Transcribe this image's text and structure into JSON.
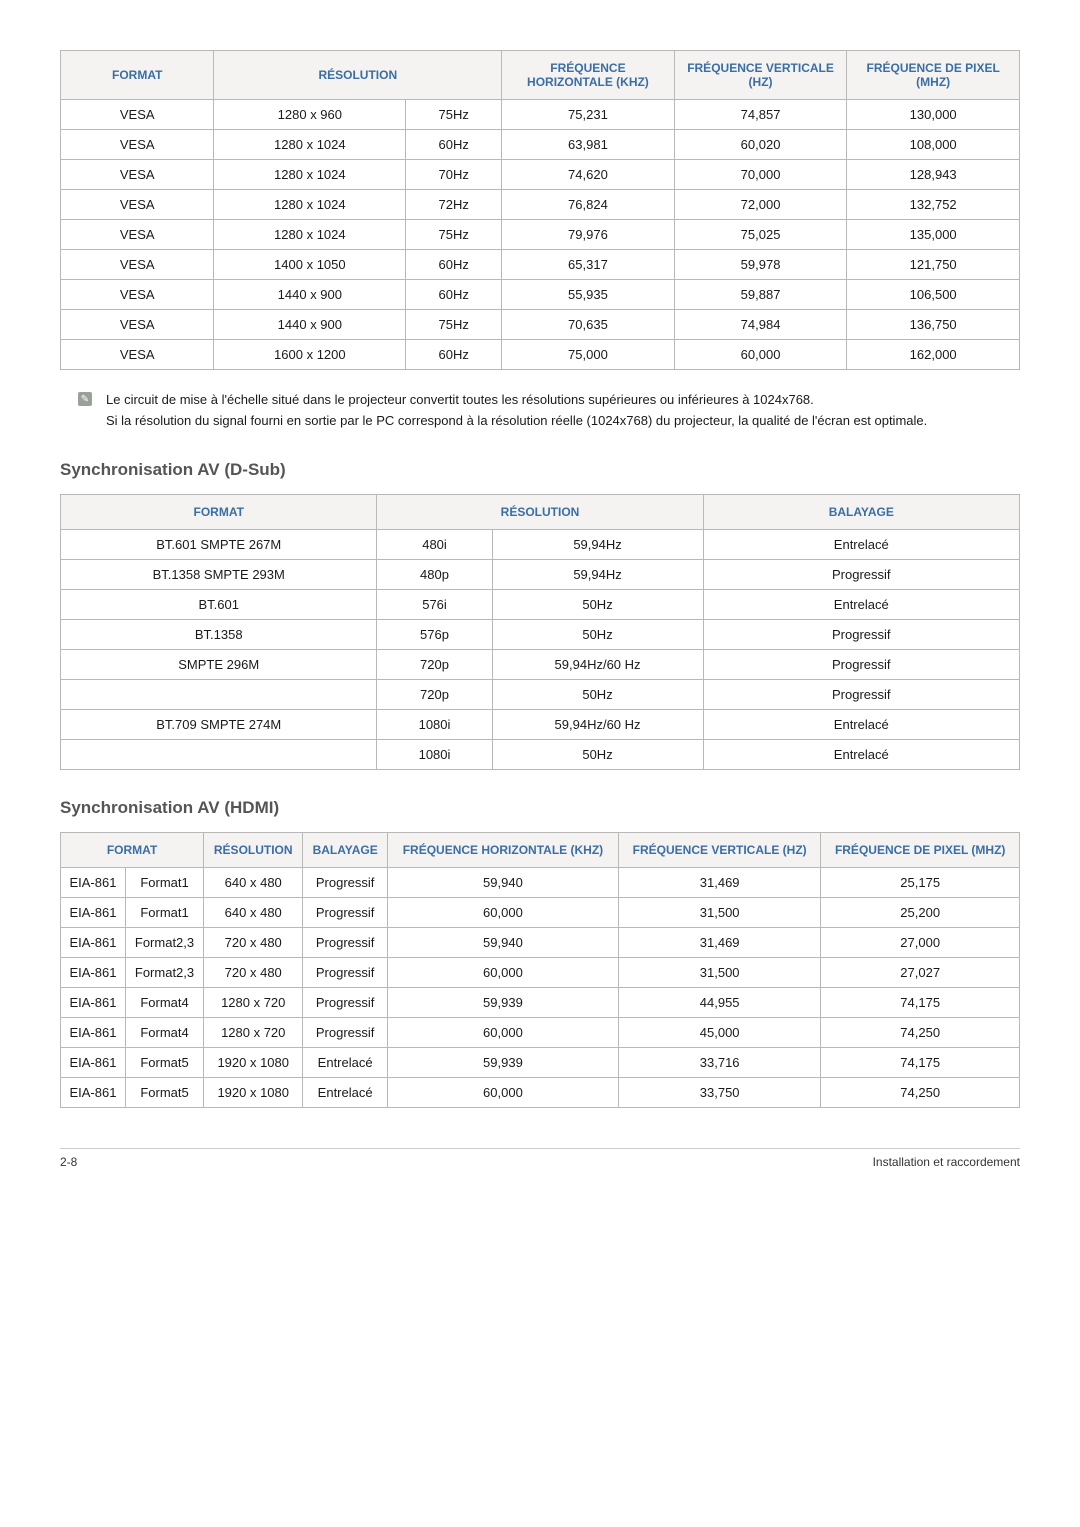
{
  "colors": {
    "header_bg": "#f4f3f2",
    "header_text": "#3a6ea5",
    "border": "#b8b8b8",
    "body_text": "#1a1a1a",
    "heading": "#555555"
  },
  "table1": {
    "headers": [
      "FORMAT",
      "RÉSOLUTION",
      "FRÉQUENCE HORIZONTALE (KHZ)",
      "FRÉQUENCE VERTICALE (HZ)",
      "FRÉQUENCE DE PIXEL (MHZ)"
    ],
    "rows": [
      [
        "VESA",
        "1280 x 960",
        "75Hz",
        "75,231",
        "74,857",
        "130,000"
      ],
      [
        "VESA",
        "1280 x 1024",
        "60Hz",
        "63,981",
        "60,020",
        "108,000"
      ],
      [
        "VESA",
        "1280 x 1024",
        "70Hz",
        "74,620",
        "70,000",
        "128,943"
      ],
      [
        "VESA",
        "1280 x 1024",
        "72Hz",
        "76,824",
        "72,000",
        "132,752"
      ],
      [
        "VESA",
        "1280 x 1024",
        "75Hz",
        "79,976",
        "75,025",
        "135,000"
      ],
      [
        "VESA",
        "1400 x 1050",
        "60Hz",
        "65,317",
        "59,978",
        "121,750"
      ],
      [
        "VESA",
        "1440 x 900",
        "60Hz",
        "55,935",
        "59,887",
        "106,500"
      ],
      [
        "VESA",
        "1440 x 900",
        "75Hz",
        "70,635",
        "74,984",
        "136,750"
      ],
      [
        "VESA",
        "1600 x 1200",
        "60Hz",
        "75,000",
        "60,000",
        "162,000"
      ]
    ]
  },
  "note": {
    "line1": "Le circuit de mise à l'échelle situé dans le projecteur convertit toutes les résolutions supérieures ou inférieures à 1024x768.",
    "line2": "Si la résolution du signal fourni en sortie par le PC correspond à la résolution réelle (1024x768) du projecteur, la qualité de l'écran est optimale."
  },
  "section2": {
    "heading": "Synchronisation AV (D-Sub)",
    "headers": [
      "FORMAT",
      "RÉSOLUTION",
      "BALAYAGE"
    ],
    "rows": [
      [
        "BT.601 SMPTE 267M",
        "480i",
        "59,94Hz",
        "Entrelacé"
      ],
      [
        "BT.1358 SMPTE 293M",
        "480p",
        "59,94Hz",
        "Progressif"
      ],
      [
        "BT.601",
        "576i",
        "50Hz",
        "Entrelacé"
      ],
      [
        "BT.1358",
        "576p",
        "50Hz",
        "Progressif"
      ],
      [
        "SMPTE 296M",
        "720p",
        "59,94Hz/60 Hz",
        "Progressif"
      ],
      [
        "",
        "720p",
        "50Hz",
        "Progressif"
      ],
      [
        "BT.709 SMPTE 274M",
        "1080i",
        "59,94Hz/60 Hz",
        "Entrelacé"
      ],
      [
        "",
        "1080i",
        "50Hz",
        "Entrelacé"
      ]
    ]
  },
  "section3": {
    "heading": "Synchronisation AV (HDMI)",
    "headers": [
      "FORMAT",
      "RÉSOLUTION",
      "BALAYAGE",
      "FRÉQUENCE HORIZONTALE (KHZ)",
      "FRÉQUENCE VERTICALE (HZ)",
      "FRÉQUENCE DE PIXEL (MHZ)"
    ],
    "rows": [
      [
        "EIA-861",
        "Format1",
        "640 x 480",
        "Progressif",
        "59,940",
        "31,469",
        "25,175"
      ],
      [
        "EIA-861",
        "Format1",
        "640 x 480",
        "Progressif",
        "60,000",
        "31,500",
        "25,200"
      ],
      [
        "EIA-861",
        "Format2,3",
        "720 x 480",
        "Progressif",
        "59,940",
        "31,469",
        "27,000"
      ],
      [
        "EIA-861",
        "Format2,3",
        "720 x 480",
        "Progressif",
        "60,000",
        "31,500",
        "27,027"
      ],
      [
        "EIA-861",
        "Format4",
        "1280 x 720",
        "Progressif",
        "59,939",
        "44,955",
        "74,175"
      ],
      [
        "EIA-861",
        "Format4",
        "1280 x 720",
        "Progressif",
        "60,000",
        "45,000",
        "74,250"
      ],
      [
        "EIA-861",
        "Format5",
        "1920 x 1080",
        "Entrelacé",
        "59,939",
        "33,716",
        "74,175"
      ],
      [
        "EIA-861",
        "Format5",
        "1920 x 1080",
        "Entrelacé",
        "60,000",
        "33,750",
        "74,250"
      ]
    ]
  },
  "footer": {
    "left": "2-8",
    "right": "Installation et raccordement"
  }
}
